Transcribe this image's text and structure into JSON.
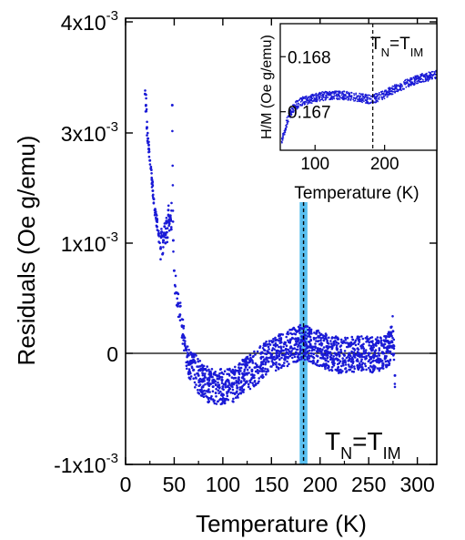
{
  "chart_data": {
    "type": "scatter",
    "xlabel": "Temperature (K)",
    "ylabel": "Residuals (Oe g/emu)",
    "xlim": [
      0,
      320
    ],
    "ylim": [
      -1.0,
      4.0
    ],
    "y_scale_note": "x10^-3",
    "xticks": [
      0,
      50,
      100,
      150,
      200,
      250,
      300
    ],
    "xtick_labels": [
      "0",
      "50",
      "100",
      "150",
      "200",
      "250",
      "300"
    ],
    "yticks": [
      -1.0,
      0,
      1.0,
      3.0,
      4.0
    ],
    "ytick_labels_mantissa": [
      "-1x10",
      "0",
      "1x10",
      "3x10",
      "4x10"
    ],
    "ytick_labels_exponent": [
      "-3",
      "",
      "-3",
      "-3",
      "-3"
    ],
    "grid": false,
    "zero_line": 0,
    "marker_color": "#1a1ad6",
    "transition": {
      "temperature": 183,
      "band": [
        179,
        187
      ],
      "band_color": "#5bc0f0",
      "label_base_1": "T",
      "label_sub_1": "N",
      "label_mid": "=T",
      "label_sub_2": "IM"
    },
    "series": [
      {
        "points": [
          [
            20,
            3.35
          ],
          [
            21,
            3.25
          ],
          [
            22,
            3.05
          ],
          [
            23,
            2.9
          ],
          [
            24,
            2.7
          ],
          [
            25,
            2.5
          ],
          [
            26,
            2.35
          ],
          [
            27,
            2.15
          ],
          [
            28,
            1.95
          ],
          [
            29,
            1.8
          ],
          [
            30,
            1.6
          ],
          [
            32,
            1.4
          ],
          [
            34,
            1.15
          ],
          [
            36,
            0.95
          ],
          [
            37,
            1.2
          ],
          [
            38,
            0.9
          ],
          [
            39,
            1.05
          ],
          [
            40,
            1.3
          ],
          [
            41,
            1.0
          ],
          [
            42,
            1.4
          ],
          [
            43,
            1.1
          ],
          [
            44,
            1.6
          ],
          [
            45,
            1.35
          ],
          [
            46,
            1.5
          ],
          [
            47,
            1.25
          ],
          [
            48,
            3.25
          ],
          [
            49,
            1.05
          ],
          [
            50,
            0.75
          ],
          [
            52,
            0.55
          ],
          [
            54,
            0.45
          ],
          [
            56,
            0.35
          ],
          [
            58,
            0.25
          ],
          [
            60,
            0.15
          ],
          [
            62,
            0.05
          ],
          [
            64,
            -0.02
          ],
          [
            66,
            -0.1
          ],
          [
            70,
            -0.15
          ],
          [
            75,
            -0.2
          ],
          [
            80,
            -0.25
          ],
          [
            85,
            -0.28
          ],
          [
            90,
            -0.3
          ],
          [
            95,
            -0.3
          ],
          [
            100,
            -0.3
          ],
          [
            105,
            -0.3
          ],
          [
            110,
            -0.28
          ],
          [
            115,
            -0.26
          ],
          [
            120,
            -0.22
          ],
          [
            125,
            -0.18
          ],
          [
            130,
            -0.15
          ],
          [
            135,
            -0.12
          ],
          [
            140,
            -0.08
          ],
          [
            145,
            -0.04
          ],
          [
            150,
            -0.02
          ],
          [
            155,
            0.0
          ],
          [
            160,
            0.02
          ],
          [
            165,
            0.04
          ],
          [
            170,
            0.06
          ],
          [
            175,
            0.08
          ],
          [
            180,
            0.1
          ],
          [
            185,
            0.1
          ],
          [
            190,
            0.08
          ],
          [
            195,
            0.06
          ],
          [
            200,
            0.04
          ],
          [
            205,
            0.02
          ],
          [
            210,
            0.0
          ],
          [
            215,
            0.0
          ],
          [
            220,
            -0.02
          ],
          [
            225,
            -0.02
          ],
          [
            230,
            0.0
          ],
          [
            235,
            -0.02
          ],
          [
            240,
            0.0
          ],
          [
            245,
            0.0
          ],
          [
            250,
            0.0
          ],
          [
            255,
            -0.02
          ],
          [
            260,
            0.0
          ],
          [
            265,
            0.0
          ],
          [
            270,
            0.02
          ],
          [
            275,
            0.2
          ],
          [
            277,
            -0.2
          ]
        ]
      }
    ],
    "inset": {
      "type": "scatter",
      "xlabel": "Temperature (K)",
      "ylabel": "H/M (Oe g/emu)",
      "xlim": [
        50,
        275
      ],
      "ylim": [
        0.1663,
        0.1686
      ],
      "xticks": [
        100,
        200
      ],
      "xtick_labels": [
        "100",
        "200"
      ],
      "yticks": [
        0.167,
        0.168
      ],
      "ytick_labels": [
        "0.167",
        "0.168"
      ],
      "transition_temperature": 183,
      "label_base_1": "T",
      "label_sub_1": "N",
      "label_mid": "=T",
      "label_sub_2": "IM",
      "points": [
        [
          52,
          0.16645
        ],
        [
          55,
          0.1666
        ],
        [
          58,
          0.16675
        ],
        [
          62,
          0.1669
        ],
        [
          66,
          0.167
        ],
        [
          70,
          0.16708
        ],
        [
          75,
          0.16714
        ],
        [
          80,
          0.16718
        ],
        [
          90,
          0.16722
        ],
        [
          100,
          0.16725
        ],
        [
          110,
          0.16728
        ],
        [
          120,
          0.1673
        ],
        [
          130,
          0.1673
        ],
        [
          140,
          0.1673
        ],
        [
          150,
          0.16728
        ],
        [
          160,
          0.16726
        ],
        [
          170,
          0.16724
        ],
        [
          180,
          0.16722
        ],
        [
          190,
          0.16726
        ],
        [
          200,
          0.16732
        ],
        [
          210,
          0.16738
        ],
        [
          220,
          0.16744
        ],
        [
          230,
          0.1675
        ],
        [
          240,
          0.16755
        ],
        [
          250,
          0.1676
        ],
        [
          260,
          0.16763
        ],
        [
          270,
          0.16766
        ],
        [
          275,
          0.16768
        ]
      ]
    }
  }
}
